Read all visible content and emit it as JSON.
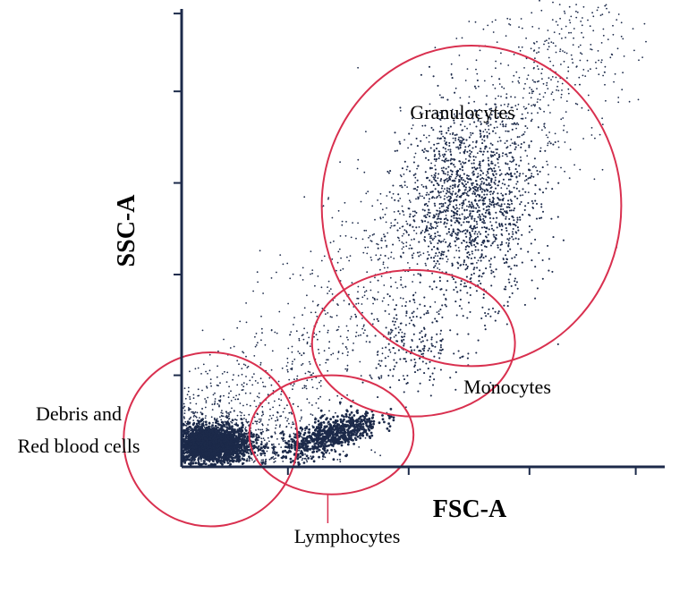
{
  "chart_data": {
    "type": "scatter",
    "title": "",
    "xlabel": "FSC-A",
    "ylabel": "SSC-A",
    "grid": false,
    "xlim": [
      0,
      100
    ],
    "ylim": [
      0,
      100
    ],
    "dot_color": "#1c2a4a",
    "gate_color": "#d9304f",
    "axis_color": "#1c2a4a",
    "populations": [
      {
        "name": "Debris and Red blood cells",
        "label_lines": [
          "Debris and",
          "Red blood cells"
        ],
        "center": [
          6,
          5
        ],
        "spread": [
          4,
          2
        ],
        "count": 2200,
        "gate": {
          "center": [
            6,
            6
          ],
          "radii": [
            18,
            19
          ]
        }
      },
      {
        "name": "Lymphocytes",
        "label_lines": [
          "Lymphocytes"
        ],
        "center": [
          31,
          7
        ],
        "spread": [
          5,
          3
        ],
        "count": 700,
        "gate": {
          "center": [
            31,
            7
          ],
          "radii": [
            17,
            13
          ]
        }
      },
      {
        "name": "Monocytes",
        "label_lines": [
          "Monocytes"
        ],
        "center": [
          48,
          27
        ],
        "spread": [
          5,
          5
        ],
        "count": 220,
        "gate": {
          "center": [
            48,
            27
          ],
          "radii": [
            21,
            16
          ]
        }
      },
      {
        "name": "Granulocytes",
        "label_lines": [
          "Granulocytes"
        ],
        "center": [
          60,
          57
        ],
        "spread": [
          7,
          10
        ],
        "count": 1300,
        "gate": {
          "center": [
            60,
            57
          ],
          "radii": [
            31,
            35
          ]
        }
      }
    ]
  }
}
